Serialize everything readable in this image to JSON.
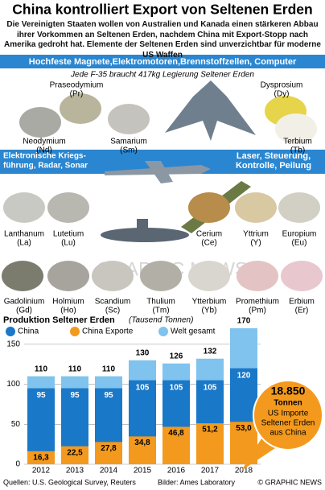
{
  "header": {
    "title": "China kontrolliert Export von Seltenen Erden",
    "subtitle": "Die Vereinigten Staaten wollen von Australien und Kanada einen stärkeren Abbau ihrer Vorkommen an Seltenen Erden, nachdem China mit Export-Stopp nach Amerika gedroht hat. Elemente der Seltenen Erden sind unverzichtbar für moderne US Waffen"
  },
  "applications": {
    "top": "Hochfeste Magnete,Elektromotoren,Brennstoffzellen, Computer",
    "f35_note": "Jede F-35 braucht 417kg Legierung Seltener Erden",
    "left": [
      "Elektronische Kriegs-",
      "führung, Radar, Sonar"
    ],
    "right": [
      "Laser, Steuerung,",
      "Kontrolle, Peilung"
    ]
  },
  "elements": [
    {
      "name": "Praseodymium",
      "symbol": "(Pr)"
    },
    {
      "name": "Dysprosium",
      "symbol": "(Dy)"
    },
    {
      "name": "Neodymium",
      "symbol": "(Nd)"
    },
    {
      "name": "Samarium",
      "symbol": "(Sm)"
    },
    {
      "name": "Terbium",
      "symbol": "(Tb)"
    },
    {
      "name": "Lanthanum",
      "symbol": "(La)"
    },
    {
      "name": "Lutetium",
      "symbol": "(Lu)"
    },
    {
      "name": "Cerium",
      "symbol": "(Ce)"
    },
    {
      "name": "Yttrium",
      "symbol": "(Y)"
    },
    {
      "name": "Europium",
      "symbol": "(Eu)"
    },
    {
      "name": "Gadolinium",
      "symbol": "(Gd)"
    },
    {
      "name": "Holmium",
      "symbol": "(Ho)"
    },
    {
      "name": "Scandium",
      "symbol": "(Sc)"
    },
    {
      "name": "Thulium",
      "symbol": "(Tm)"
    },
    {
      "name": "Ytterbium",
      "symbol": "(Yb)"
    },
    {
      "name": "Promethium",
      "symbol": "(Pm)"
    },
    {
      "name": "Erbium",
      "symbol": "(Er)"
    }
  ],
  "watermark": "GRAPHIC NEWS",
  "chart_data": {
    "type": "bar",
    "title": "Produktion Seltener Erden",
    "subtitle": "(Tausend Tonnen)",
    "categories": [
      "2012",
      "2013",
      "2014",
      "2015",
      "2016",
      "2017",
      "2018"
    ],
    "series": [
      {
        "name": "Welt gesamt",
        "color": "#7fc3ee",
        "values": [
          110,
          110,
          110,
          130,
          126,
          132,
          170
        ]
      },
      {
        "name": "China",
        "color": "#1a78c8",
        "values": [
          95,
          95,
          95,
          105,
          105,
          105,
          120
        ]
      },
      {
        "name": "China Exporte",
        "color": "#f39a1e",
        "values": [
          16.3,
          22.5,
          27.8,
          34.8,
          46.8,
          51.2,
          53.0
        ],
        "value_labels": [
          "16,3",
          "22,5",
          "27,8",
          "34,8",
          "46,8",
          "51,2",
          "53,0"
        ]
      }
    ],
    "ylim": [
      0,
      170
    ],
    "yticks": [
      0,
      50,
      100,
      150
    ],
    "grid": true
  },
  "callout": {
    "value": "18.850",
    "unit": "Tonnen",
    "lines": [
      "US Importe",
      "Seltener Erden",
      "aus China"
    ]
  },
  "footer": {
    "source": "Quellen: U.S. Geological Survey, Reuters",
    "credit": "Bilder: Ames Laboratory",
    "copyright": "© GRAPHIC NEWS"
  }
}
